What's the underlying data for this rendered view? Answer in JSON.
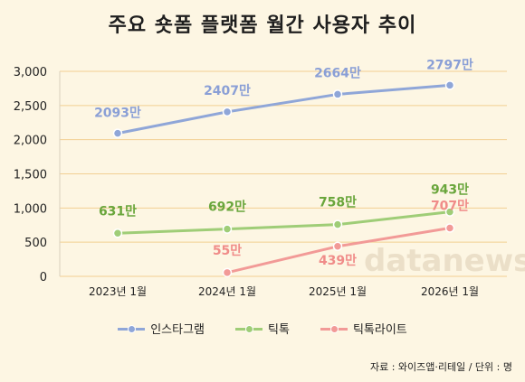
{
  "title": "주요 숏폼 플랫폼 월간 사용자 추이",
  "source": "자료 : 와이즈앱·리테일 / 단위 : 명",
  "watermark": "datanews",
  "colors": {
    "background": "#fdf6e3",
    "grid": "#f2cf92",
    "instagram": "#8fa6d8",
    "tiktok": "#9fcd77",
    "tiktok_lite": "#f29a97",
    "label_instagram": "#8a9fd6",
    "label_tiktok": "#6aa63c",
    "label_tiktok_lite": "#f08c89"
  },
  "chart_data": {
    "type": "line",
    "title": "주요 숏폼 플랫폼 월간 사용자 추이",
    "xlabel": "",
    "ylabel": "",
    "categories": [
      "2023년 1월",
      "2024년 1월",
      "2025년 1월",
      "2026년 1월"
    ],
    "ylim": [
      0,
      3000
    ],
    "yticks": [
      0,
      500,
      1000,
      1500,
      2000,
      2500,
      3000
    ],
    "ytick_labels": [
      "0",
      "500",
      "1,000",
      "1,500",
      "2,000",
      "2,500",
      "3,000"
    ],
    "grid": true,
    "legend_position": "bottom",
    "series": [
      {
        "name": "인스타그램",
        "color_key": "instagram",
        "values": [
          2093,
          2407,
          2664,
          2797
        ],
        "labels": [
          "2093만",
          "2407만",
          "2664만",
          "2797만"
        ]
      },
      {
        "name": "틱톡",
        "color_key": "tiktok",
        "values": [
          631,
          692,
          758,
          943
        ],
        "labels": [
          "631만",
          "692만",
          "758만",
          "943만"
        ]
      },
      {
        "name": "틱톡라이트",
        "color_key": "tiktok_lite",
        "values": [
          null,
          55,
          439,
          707
        ],
        "labels": [
          null,
          "55만",
          "439만",
          "707만"
        ]
      }
    ]
  }
}
